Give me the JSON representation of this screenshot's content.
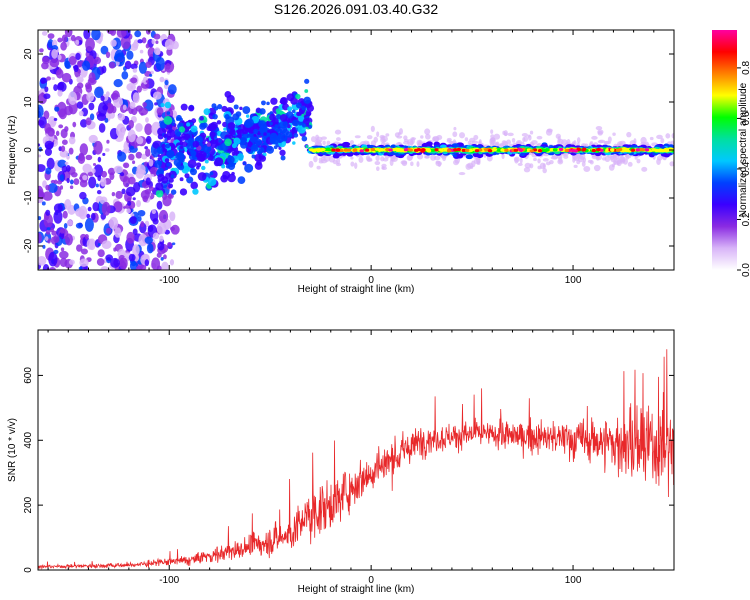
{
  "title": "S126.2026.091.03.40.G32",
  "chart_data": [
    {
      "type": "heatmap",
      "title": "S126.2026.091.03.40.G32",
      "xlabel": "Height of straight line (km)",
      "ylabel": "Frequency (Hz)",
      "xlim": [
        -165,
        150
      ],
      "ylim": [
        -25,
        25
      ],
      "x_ticks": [
        -100,
        0,
        100
      ],
      "y_ticks": [
        -20,
        -10,
        0,
        10,
        20
      ],
      "colorbar": {
        "label": "Normalized spectral amplitude",
        "range": [
          0,
          0.95
        ],
        "ticks": [
          0.0,
          0.2,
          0.4,
          0.6,
          0.8
        ],
        "colors": [
          "#ffffff",
          "#d8b4f8",
          "#8a2be2",
          "#3a00ff",
          "#0040ff",
          "#00c8ff",
          "#00e0a0",
          "#00ff00",
          "#ffff00",
          "#ff8000",
          "#ff0000",
          "#ff00a0"
        ]
      },
      "description_segments": [
        {
          "x_range": [
            -165,
            -105
          ],
          "freq_spread": [
            -25,
            25
          ],
          "amplitude": 0.05
        },
        {
          "x_range": [
            -105,
            -30
          ],
          "freq_center_start": 0,
          "freq_center_end": 8,
          "freq_spread": 6,
          "amplitude": 0.25
        },
        {
          "x_range": [
            -30,
            150
          ],
          "freq_center": 0,
          "freq_spread": 1.5,
          "amplitude": 0.7
        }
      ]
    },
    {
      "type": "line",
      "xlabel": "Height of straight line (km)",
      "ylabel": "SNR (10 * v/v)",
      "xlim": [
        -165,
        150
      ],
      "ylim": [
        0,
        740
      ],
      "x_ticks": [
        -100,
        0,
        100
      ],
      "y_ticks": [
        0,
        200,
        400,
        600
      ],
      "series": [
        {
          "name": "SNR",
          "color": "#e8282a",
          "envelope_points": [
            {
              "x": -165,
              "mean": 10,
              "spread": 6
            },
            {
              "x": -120,
              "mean": 15,
              "spread": 10
            },
            {
              "x": -90,
              "mean": 30,
              "spread": 20
            },
            {
              "x": -60,
              "mean": 70,
              "spread": 45
            },
            {
              "x": -40,
              "mean": 110,
              "spread": 70
            },
            {
              "x": -28,
              "mean": 180,
              "spread": 110
            },
            {
              "x": -20,
              "mean": 200,
              "spread": 90
            },
            {
              "x": -5,
              "mean": 280,
              "spread": 80
            },
            {
              "x": 10,
              "mean": 340,
              "spread": 80
            },
            {
              "x": 25,
              "mean": 400,
              "spread": 60
            },
            {
              "x": 50,
              "mean": 420,
              "spread": 50
            },
            {
              "x": 80,
              "mean": 410,
              "spread": 60
            },
            {
              "x": 110,
              "mean": 400,
              "spread": 90
            },
            {
              "x": 130,
              "mean": 380,
              "spread": 150
            },
            {
              "x": 150,
              "mean": 380,
              "spread": 180
            }
          ]
        }
      ]
    }
  ]
}
